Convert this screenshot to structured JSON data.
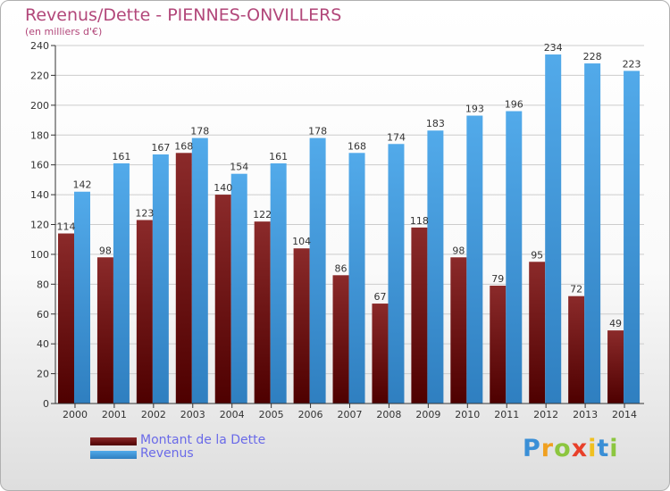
{
  "chart_data": {
    "type": "bar",
    "title": "Revenus/Dette - PIENNES-ONVILLERS",
    "subtitle": "(en milliers d'€)",
    "categories": [
      "2000",
      "2001",
      "2002",
      "2003",
      "2004",
      "2005",
      "2006",
      "2007",
      "2008",
      "2009",
      "2010",
      "2011",
      "2012",
      "2013",
      "2014"
    ],
    "series": [
      {
        "name": "Montant de la Dette",
        "color": "#8b2a2a",
        "values": [
          114,
          98,
          123,
          168,
          140,
          122,
          104,
          86,
          67,
          118,
          98,
          79,
          95,
          72,
          49
        ]
      },
      {
        "name": "Revenus",
        "color": "#4da3e6",
        "values": [
          142,
          161,
          167,
          178,
          154,
          161,
          178,
          168,
          174,
          183,
          193,
          196,
          234,
          228,
          223
        ]
      }
    ],
    "ylim": [
      0,
      240
    ],
    "yticks": [
      "0",
      "20",
      "40",
      "60",
      "80",
      "100",
      "120",
      "140",
      "160",
      "180",
      "200",
      "220",
      "240"
    ],
    "grid": true,
    "legend_position": "bottom-left"
  },
  "logo": {
    "letters": [
      "P",
      "r",
      "o",
      "x",
      "i",
      "t",
      "i"
    ],
    "colors": [
      "#3a8fd6",
      "#f0a020",
      "#8cc63f",
      "#e8402a",
      "#f0c020",
      "#3a8fd6",
      "#8cc63f"
    ]
  }
}
